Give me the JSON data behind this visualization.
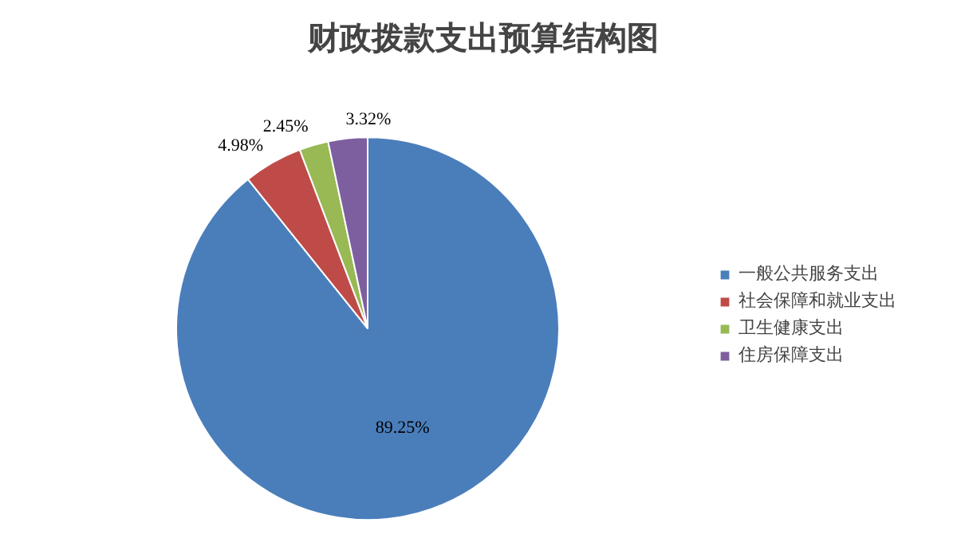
{
  "chart_data": {
    "type": "pie",
    "title": "财政拨款支出预算结构图",
    "categories": [
      "一般公共服务支出",
      "社会保障和就业支出",
      "卫生健康支出",
      "住房保障支出"
    ],
    "values": [
      89.25,
      4.98,
      2.45,
      3.32
    ],
    "colors": [
      "#4a7ebb",
      "#be4b48",
      "#98b954",
      "#7d5fa0"
    ],
    "value_labels": [
      "89.25%",
      "4.98%",
      "2.45%",
      "3.32%"
    ],
    "legend": "right"
  }
}
